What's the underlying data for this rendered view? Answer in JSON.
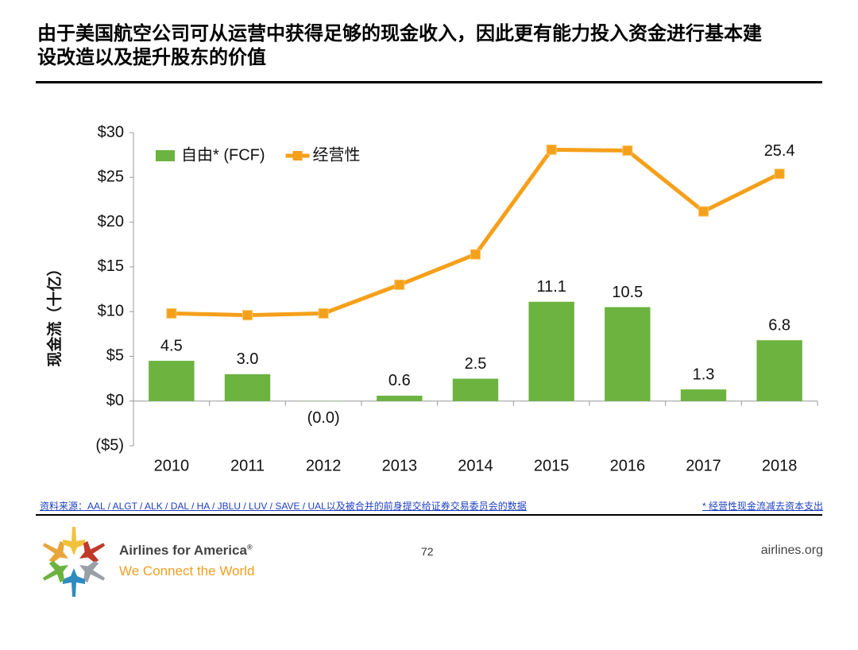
{
  "title": "由于美国航空公司可从运营中获得足够的现金收入，因此更有能力投入资金进行基本建设改造以及提升股东的价值",
  "chart_data": {
    "type": "bar_line",
    "ylabel": "现金流（十亿）",
    "categories": [
      "2010",
      "2011",
      "2012",
      "2013",
      "2014",
      "2015",
      "2016",
      "2017",
      "2018"
    ],
    "series": [
      {
        "name": "自由* (FCF)",
        "type": "bar",
        "color": "#6cb33f",
        "values": [
          4.5,
          3.0,
          -0.02,
          0.6,
          2.5,
          11.1,
          10.5,
          1.3,
          6.8
        ],
        "value_labels": [
          "4.5",
          "3.0",
          "(0.0)",
          "0.6",
          "2.5",
          "11.1",
          "10.5",
          "1.3",
          "6.8"
        ]
      },
      {
        "name": "经营性",
        "type": "line",
        "color": "#f5a01a",
        "values": [
          9.8,
          9.6,
          9.8,
          13.0,
          16.4,
          28.1,
          28.0,
          21.2,
          25.4
        ],
        "value_labels": [
          null,
          null,
          null,
          null,
          null,
          null,
          null,
          null,
          "25.4"
        ]
      }
    ],
    "ylim": [
      -5,
      30
    ],
    "yticks": [
      {
        "value": -5,
        "label": "($5)"
      },
      {
        "value": 0,
        "label": "$0"
      },
      {
        "value": 5,
        "label": "$5"
      },
      {
        "value": 10,
        "label": "$10"
      },
      {
        "value": 15,
        "label": "$15"
      },
      {
        "value": 20,
        "label": "$20"
      },
      {
        "value": 25,
        "label": "$25"
      },
      {
        "value": 30,
        "label": "$30"
      }
    ],
    "grid": false,
    "legend": "upper left",
    "negative_color": "#c00000"
  },
  "footer": {
    "source": "资料来源：AAL / ALGT / ALK / DAL / HA / JBLU / LUV / SAVE / UAL以及被合并的前身提交给证券交易委员会的数据",
    "note": "* 经营性现金流减去资本支出",
    "brand": "Airlines for America",
    "reg": "®",
    "tagline": "We Connect the World",
    "page": "72",
    "site": "airlines.org"
  }
}
